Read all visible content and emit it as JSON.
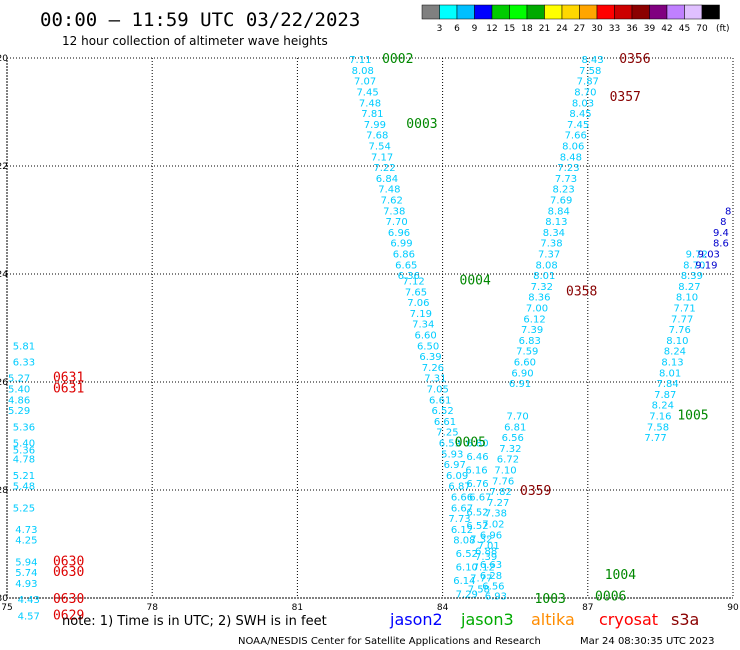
{
  "header": {
    "title": "00:00 — 11:59 UTC 03/22/2023",
    "subtitle": "12 hour collection of altimeter wave heights"
  },
  "colorbar": {
    "unit_label": "(ft)",
    "colors": [
      "#808080",
      "#00ffff",
      "#00bfff",
      "#0000ff",
      "#00cc00",
      "#00ff00",
      "#00aa00",
      "#ffff00",
      "#ffd700",
      "#ffa500",
      "#ff0000",
      "#cc0000",
      "#8b0000",
      "#800080",
      "#c080ff",
      "#e0c0ff",
      "#000000"
    ],
    "labels": [
      "3",
      "6",
      "9",
      "12",
      "15",
      "18",
      "21",
      "24",
      "27",
      "30",
      "33",
      "36",
      "39",
      "42",
      "45",
      "70"
    ]
  },
  "footer": {
    "note": "note: 1) Time is in UTC; 2) SWH is in feet",
    "legend": [
      {
        "name": "jason2",
        "color": "#0000ff"
      },
      {
        "name": "jason3",
        "color": "#00aa00"
      },
      {
        "name": "altika",
        "color": "#ff8c00"
      },
      {
        "name": "cryosat",
        "color": "#ff0000"
      },
      {
        "name": "s3a",
        "color": "#8b0000"
      }
    ],
    "credit": "NOAA/NESDIS Center for Satellite Applications and Research",
    "timestamp": "Mar 24 08:30:35 UTC 2023"
  },
  "chart_data": {
    "type": "scatter",
    "xlim": [
      75,
      90
    ],
    "ylim": [
      -30,
      -20
    ],
    "x_ticks": [
      "75",
      "78",
      "81",
      "84",
      "87",
      "90"
    ],
    "y_ticks": [
      "-20",
      "-22",
      "-24",
      "-26",
      "-28",
      "-30"
    ],
    "grid": true,
    "value_colors": {
      "cyan": "#00ccff",
      "blue": "#0000cc"
    },
    "points": [
      {
        "x": 82.3,
        "y": -20.02,
        "v": "7.11"
      },
      {
        "x": 82.35,
        "y": -20.22,
        "v": "8.08"
      },
      {
        "x": 82.4,
        "y": -20.42,
        "v": "7.07"
      },
      {
        "x": 82.45,
        "y": -20.62,
        "v": "7.45"
      },
      {
        "x": 82.5,
        "y": -20.82,
        "v": "7.48"
      },
      {
        "x": 82.55,
        "y": -21.02,
        "v": "7.81"
      },
      {
        "x": 82.6,
        "y": -21.22,
        "v": "7.99"
      },
      {
        "x": 82.65,
        "y": -21.42,
        "v": "7.68"
      },
      {
        "x": 82.7,
        "y": -21.62,
        "v": "7.54"
      },
      {
        "x": 82.75,
        "y": -21.82,
        "v": "7.17"
      },
      {
        "x": 82.8,
        "y": -22.02,
        "v": "7.22"
      },
      {
        "x": 82.85,
        "y": -22.22,
        "v": "6.84"
      },
      {
        "x": 82.9,
        "y": -22.42,
        "v": "7.48"
      },
      {
        "x": 82.95,
        "y": -22.62,
        "v": "7.62"
      },
      {
        "x": 83.0,
        "y": -22.82,
        "v": "7.38"
      },
      {
        "x": 83.05,
        "y": -23.02,
        "v": "7.70"
      },
      {
        "x": 83.1,
        "y": -23.22,
        "v": "6.96"
      },
      {
        "x": 83.15,
        "y": -23.42,
        "v": "6.99"
      },
      {
        "x": 83.2,
        "y": -23.62,
        "v": "6.86"
      },
      {
        "x": 83.25,
        "y": -23.82,
        "v": "6.65"
      },
      {
        "x": 83.3,
        "y": -24.02,
        "v": "6.36"
      },
      {
        "x": 83.4,
        "y": -24.12,
        "v": "7.12"
      },
      {
        "x": 83.45,
        "y": -24.32,
        "v": "7.65"
      },
      {
        "x": 83.5,
        "y": -24.52,
        "v": "7.06"
      },
      {
        "x": 83.55,
        "y": -24.72,
        "v": "7.19"
      },
      {
        "x": 83.6,
        "y": -24.92,
        "v": "7.34"
      },
      {
        "x": 83.65,
        "y": -25.12,
        "v": "6.60"
      },
      {
        "x": 83.7,
        "y": -25.32,
        "v": "6.50"
      },
      {
        "x": 83.75,
        "y": -25.52,
        "v": "6.39"
      },
      {
        "x": 83.8,
        "y": -25.72,
        "v": "7.26"
      },
      {
        "x": 83.85,
        "y": -25.92,
        "v": "7.31"
      },
      {
        "x": 83.9,
        "y": -26.12,
        "v": "7.05"
      },
      {
        "x": 83.95,
        "y": -26.32,
        "v": "6.61"
      },
      {
        "x": 84.0,
        "y": -26.52,
        "v": "6.52"
      },
      {
        "x": 84.05,
        "y": -26.72,
        "v": "6.61"
      },
      {
        "x": 84.1,
        "y": -26.92,
        "v": "7.25"
      },
      {
        "x": 84.15,
        "y": -27.12,
        "v": "6.59"
      },
      {
        "x": 84.2,
        "y": -27.32,
        "v": "5.93"
      },
      {
        "x": 84.25,
        "y": -27.52,
        "v": "6.97"
      },
      {
        "x": 84.3,
        "y": -27.72,
        "v": "6.09"
      },
      {
        "x": 84.35,
        "y": -27.92,
        "v": "6.87"
      },
      {
        "x": 84.4,
        "y": -28.12,
        "v": "6.66"
      },
      {
        "x": 84.4,
        "y": -28.32,
        "v": "6.67"
      },
      {
        "x": 84.35,
        "y": -28.52,
        "v": "7.73"
      },
      {
        "x": 84.4,
        "y": -28.72,
        "v": "6.12"
      },
      {
        "x": 84.45,
        "y": -28.92,
        "v": "8.08"
      },
      {
        "x": 84.5,
        "y": -29.17,
        "v": "6.52"
      },
      {
        "x": 84.5,
        "y": -29.42,
        "v": "6.10"
      },
      {
        "x": 84.45,
        "y": -29.67,
        "v": "6.14"
      },
      {
        "x": 84.5,
        "y": -29.92,
        "v": "7.29"
      },
      {
        "x": 84.72,
        "y": -27.12,
        "v": "6.80"
      },
      {
        "x": 84.72,
        "y": -27.37,
        "v": "6.46"
      },
      {
        "x": 84.7,
        "y": -27.62,
        "v": "6.16"
      },
      {
        "x": 84.72,
        "y": -27.87,
        "v": "6.76"
      },
      {
        "x": 84.78,
        "y": -28.12,
        "v": "6.67"
      },
      {
        "x": 84.72,
        "y": -28.4,
        "v": "6.52"
      },
      {
        "x": 84.72,
        "y": -28.65,
        "v": "6.52"
      },
      {
        "x": 84.8,
        "y": -28.9,
        "v": "7.32"
      },
      {
        "x": 84.9,
        "y": -29.12,
        "v": "6.88"
      },
      {
        "x": 85.0,
        "y": -29.37,
        "v": "6.63"
      },
      {
        "x": 85.0,
        "y": -29.57,
        "v": "6.28"
      },
      {
        "x": 85.05,
        "y": -29.77,
        "v": "6.56"
      },
      {
        "x": 85.1,
        "y": -29.95,
        "v": "6.93"
      },
      {
        "x": 87.1,
        "y": -20.02,
        "v": "8.43"
      },
      {
        "x": 87.05,
        "y": -20.22,
        "v": "7.58"
      },
      {
        "x": 87.0,
        "y": -20.42,
        "v": "7.87"
      },
      {
        "x": 86.95,
        "y": -20.62,
        "v": "8.70"
      },
      {
        "x": 86.9,
        "y": -20.82,
        "v": "8.03"
      },
      {
        "x": 86.85,
        "y": -21.02,
        "v": "8.45"
      },
      {
        "x": 86.8,
        "y": -21.22,
        "v": "7.45"
      },
      {
        "x": 86.75,
        "y": -21.42,
        "v": "7.66"
      },
      {
        "x": 86.7,
        "y": -21.62,
        "v": "8.06"
      },
      {
        "x": 86.65,
        "y": -21.82,
        "v": "8.48"
      },
      {
        "x": 86.6,
        "y": -22.02,
        "v": "7.23"
      },
      {
        "x": 86.55,
        "y": -22.22,
        "v": "7.73"
      },
      {
        "x": 86.5,
        "y": -22.42,
        "v": "8.23"
      },
      {
        "x": 86.45,
        "y": -22.62,
        "v": "7.69"
      },
      {
        "x": 86.4,
        "y": -22.82,
        "v": "8.84"
      },
      {
        "x": 86.35,
        "y": -23.02,
        "v": "8.13"
      },
      {
        "x": 86.3,
        "y": -23.22,
        "v": "8.34"
      },
      {
        "x": 86.25,
        "y": -23.42,
        "v": "7.38"
      },
      {
        "x": 86.2,
        "y": -23.62,
        "v": "7.37"
      },
      {
        "x": 86.15,
        "y": -23.82,
        "v": "8.08"
      },
      {
        "x": 86.1,
        "y": -24.02,
        "v": "8.01"
      },
      {
        "x": 86.05,
        "y": -24.22,
        "v": "7.32"
      },
      {
        "x": 86.0,
        "y": -24.42,
        "v": "8.36"
      },
      {
        "x": 85.95,
        "y": -24.62,
        "v": "7.00"
      },
      {
        "x": 85.9,
        "y": -24.82,
        "v": "6.12"
      },
      {
        "x": 85.85,
        "y": -25.02,
        "v": "7.39"
      },
      {
        "x": 85.8,
        "y": -25.22,
        "v": "6.83"
      },
      {
        "x": 85.75,
        "y": -25.42,
        "v": "7.59"
      },
      {
        "x": 85.7,
        "y": -25.62,
        "v": "6.60"
      },
      {
        "x": 85.65,
        "y": -25.82,
        "v": "6.90"
      },
      {
        "x": 85.6,
        "y": -26.02,
        "v": "6.91"
      },
      {
        "x": 85.55,
        "y": -26.62,
        "v": "7.70"
      },
      {
        "x": 85.5,
        "y": -26.82,
        "v": "6.81"
      },
      {
        "x": 85.45,
        "y": -27.02,
        "v": "6.56"
      },
      {
        "x": 85.4,
        "y": -27.22,
        "v": "7.32"
      },
      {
        "x": 85.35,
        "y": -27.42,
        "v": "6.72"
      },
      {
        "x": 85.3,
        "y": -27.62,
        "v": "7.10"
      },
      {
        "x": 85.25,
        "y": -27.82,
        "v": "7.76"
      },
      {
        "x": 85.2,
        "y": -28.02,
        "v": "7.82"
      },
      {
        "x": 85.15,
        "y": -28.22,
        "v": "7.27"
      },
      {
        "x": 85.1,
        "y": -28.42,
        "v": "7.38"
      },
      {
        "x": 85.05,
        "y": -28.62,
        "v": "7.02"
      },
      {
        "x": 85.0,
        "y": -28.82,
        "v": "6.96"
      },
      {
        "x": 84.95,
        "y": -29.02,
        "v": "7.01"
      },
      {
        "x": 84.9,
        "y": -29.22,
        "v": "7.39"
      },
      {
        "x": 84.85,
        "y": -29.42,
        "v": "7.12"
      },
      {
        "x": 84.8,
        "y": -29.62,
        "v": "7.77"
      },
      {
        "x": 84.75,
        "y": -29.82,
        "v": "7.58"
      },
      {
        "x": 89.25,
        "y": -23.62,
        "v": "9.72"
      },
      {
        "x": 89.2,
        "y": -23.82,
        "v": "8.70"
      },
      {
        "x": 89.15,
        "y": -24.02,
        "v": "8.39"
      },
      {
        "x": 89.1,
        "y": -24.22,
        "v": "8.27"
      },
      {
        "x": 89.05,
        "y": -24.42,
        "v": "8.10"
      },
      {
        "x": 89.0,
        "y": -24.62,
        "v": "7.71"
      },
      {
        "x": 88.95,
        "y": -24.82,
        "v": "7.77"
      },
      {
        "x": 88.9,
        "y": -25.02,
        "v": "7.76"
      },
      {
        "x": 88.85,
        "y": -25.22,
        "v": "8.10"
      },
      {
        "x": 88.8,
        "y": -25.42,
        "v": "8.24"
      },
      {
        "x": 88.75,
        "y": -25.62,
        "v": "8.13"
      },
      {
        "x": 88.7,
        "y": -25.82,
        "v": "8.01"
      },
      {
        "x": 88.65,
        "y": -26.02,
        "v": "7.84"
      },
      {
        "x": 88.6,
        "y": -26.22,
        "v": "7.87"
      },
      {
        "x": 88.55,
        "y": -26.42,
        "v": "8.24"
      },
      {
        "x": 88.5,
        "y": -26.62,
        "v": "7.16"
      },
      {
        "x": 88.45,
        "y": -26.82,
        "v": "7.58"
      },
      {
        "x": 88.4,
        "y": -27.02,
        "v": "7.77"
      },
      {
        "x": 75.35,
        "y": -25.32,
        "v": "5.81"
      },
      {
        "x": 75.35,
        "y": -25.62,
        "v": "6.33"
      },
      {
        "x": 75.25,
        "y": -25.92,
        "v": "5.27"
      },
      {
        "x": 75.25,
        "y": -26.12,
        "v": "5.40"
      },
      {
        "x": 75.25,
        "y": -26.32,
        "v": "4.86"
      },
      {
        "x": 75.25,
        "y": -26.52,
        "v": "5.29"
      },
      {
        "x": 75.35,
        "y": -26.82,
        "v": "5.36"
      },
      {
        "x": 75.35,
        "y": -27.12,
        "v": "5.40"
      },
      {
        "x": 75.35,
        "y": -27.25,
        "v": "5.36"
      },
      {
        "x": 75.35,
        "y": -27.42,
        "v": "4.78"
      },
      {
        "x": 75.35,
        "y": -27.72,
        "v": "5.21"
      },
      {
        "x": 75.35,
        "y": -27.92,
        "v": "5.48"
      },
      {
        "x": 75.35,
        "y": -28.32,
        "v": "5.25"
      },
      {
        "x": 75.4,
        "y": -28.72,
        "v": "4.73"
      },
      {
        "x": 75.4,
        "y": -28.92,
        "v": "4.25"
      },
      {
        "x": 75.4,
        "y": -29.32,
        "v": "5.94"
      },
      {
        "x": 75.4,
        "y": -29.52,
        "v": "5.74"
      },
      {
        "x": 75.4,
        "y": -29.72,
        "v": "4.93"
      },
      {
        "x": 75.45,
        "y": -30.02,
        "v": "4.43"
      },
      {
        "x": 75.45,
        "y": -30.32,
        "v": "4.57"
      }
    ],
    "blue_points": [
      {
        "x": 89.9,
        "y": -22.82,
        "v": "8"
      },
      {
        "x": 89.8,
        "y": -23.02,
        "v": "8"
      },
      {
        "x": 89.75,
        "y": -23.22,
        "v": "9.4"
      },
      {
        "x": 89.75,
        "y": -23.42,
        "v": "8.6"
      },
      {
        "x": 89.5,
        "y": -23.62,
        "v": "9.03"
      },
      {
        "x": 89.45,
        "y": -23.82,
        "v": "9.19"
      }
    ],
    "pass_labels": [
      {
        "x": 82.75,
        "y": -20.02,
        "t": "0002",
        "color": "#008800"
      },
      {
        "x": 83.25,
        "y": -21.22,
        "t": "0003",
        "color": "#008800"
      },
      {
        "x": 84.35,
        "y": -24.12,
        "t": "0004",
        "color": "#008800"
      },
      {
        "x": 84.25,
        "y": -27.12,
        "t": "0005",
        "color": "#008800"
      },
      {
        "x": 87.65,
        "y": -20.02,
        "t": "0356",
        "color": "#880000"
      },
      {
        "x": 87.45,
        "y": -20.72,
        "t": "0357",
        "color": "#880000"
      },
      {
        "x": 86.55,
        "y": -24.32,
        "t": "0358",
        "color": "#880000"
      },
      {
        "x": 85.6,
        "y": -28.02,
        "t": "0359",
        "color": "#880000"
      },
      {
        "x": 88.85,
        "y": -26.62,
        "t": "1005",
        "color": "#008800"
      },
      {
        "x": 87.35,
        "y": -29.57,
        "t": "1004",
        "color": "#008800"
      },
      {
        "x": 87.15,
        "y": -29.97,
        "t": "0006",
        "color": "#008800"
      },
      {
        "x": 85.9,
        "y": -30.02,
        "t": "1003",
        "color": "#008800"
      },
      {
        "x": 75.95,
        "y": -25.92,
        "t": "0631",
        "color": "#dd0000"
      },
      {
        "x": 75.95,
        "y": -26.12,
        "t": "0631",
        "color": "#dd0000"
      },
      {
        "x": 75.95,
        "y": -29.32,
        "t": "0630",
        "color": "#dd0000"
      },
      {
        "x": 75.95,
        "y": -29.52,
        "t": "0630",
        "color": "#dd0000"
      },
      {
        "x": 75.95,
        "y": -30.02,
        "t": "0630",
        "color": "#dd0000"
      },
      {
        "x": 75.95,
        "y": -30.32,
        "t": "0629",
        "color": "#dd0000"
      }
    ]
  }
}
